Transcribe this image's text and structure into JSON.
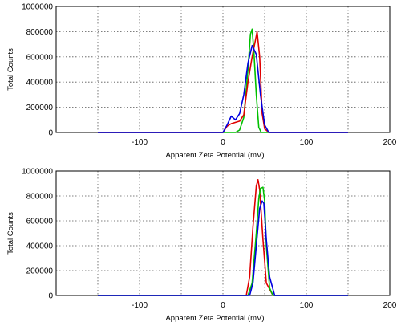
{
  "chart_data": [
    {
      "type": "line",
      "xlabel": "Apparent Zeta Potential (mV)",
      "ylabel": "Total Counts",
      "xlim": [
        -200,
        200
      ],
      "ylim": [
        0,
        1000000
      ],
      "x_ticks": [
        "-100",
        "0",
        "100",
        "200"
      ],
      "y_ticks": [
        "0",
        "200000",
        "400000",
        "600000",
        "800000",
        "1000000"
      ],
      "grid": true,
      "series": [
        {
          "color": "#00c000",
          "x": [
            -150,
            15,
            20,
            25,
            30,
            33,
            35,
            37,
            40,
            43,
            46,
            60,
            150
          ],
          "y": [
            0,
            0,
            20000,
            120000,
            500000,
            780000,
            820000,
            650000,
            300000,
            40000,
            0,
            0,
            0
          ]
        },
        {
          "color": "#e00000",
          "x": [
            -150,
            0,
            5,
            10,
            20,
            25,
            30,
            35,
            38,
            41,
            44,
            47,
            50,
            55,
            150
          ],
          "y": [
            0,
            0,
            50000,
            70000,
            90000,
            140000,
            400000,
            600000,
            700000,
            800000,
            600000,
            150000,
            30000,
            0,
            0
          ]
        },
        {
          "color": "#0000e0",
          "x": [
            -150,
            0,
            5,
            10,
            15,
            20,
            25,
            30,
            35,
            40,
            45,
            50,
            55,
            150
          ],
          "y": [
            0,
            0,
            60000,
            130000,
            100000,
            150000,
            300000,
            550000,
            690000,
            620000,
            300000,
            60000,
            0,
            0
          ]
        }
      ]
    },
    {
      "type": "line",
      "xlabel": "Apparent Zeta Potential (mV)",
      "ylabel": "Total Counts",
      "xlim": [
        -200,
        200
      ],
      "ylim": [
        0,
        1000000
      ],
      "x_ticks": [
        "-100",
        "0",
        "100",
        "200"
      ],
      "y_ticks": [
        "0",
        "200000",
        "400000",
        "600000",
        "800000",
        "1000000"
      ],
      "grid": true,
      "series": [
        {
          "color": "#e00000",
          "x": [
            -150,
            28,
            32,
            36,
            40,
            42,
            44,
            48,
            52,
            60,
            150
          ],
          "y": [
            0,
            0,
            150000,
            550000,
            880000,
            930000,
            850000,
            450000,
            100000,
            0,
            0
          ]
        },
        {
          "color": "#00c000",
          "x": [
            -150,
            30,
            35,
            40,
            43,
            45,
            48,
            50,
            52,
            56,
            60,
            150
          ],
          "y": [
            0,
            0,
            100000,
            500000,
            780000,
            860000,
            870000,
            760000,
            400000,
            60000,
            0,
            0
          ]
        },
        {
          "color": "#0000e0",
          "x": [
            -150,
            32,
            36,
            40,
            44,
            47,
            49,
            52,
            56,
            62,
            150
          ],
          "y": [
            0,
            0,
            100000,
            400000,
            700000,
            760000,
            740000,
            450000,
            150000,
            0,
            0
          ]
        }
      ]
    }
  ]
}
